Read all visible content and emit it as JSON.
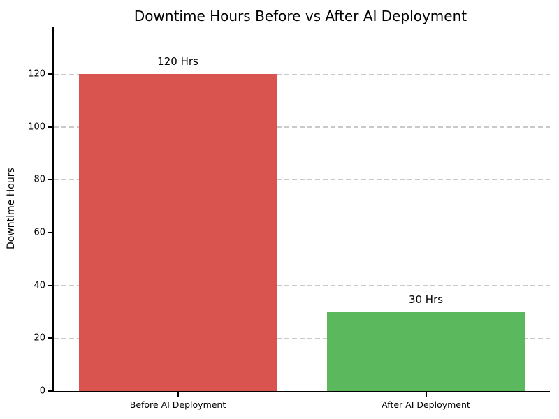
{
  "chart_data": {
    "type": "bar",
    "title": "Downtime Hours Before vs After AI Deployment",
    "xlabel": "",
    "ylabel": "Downtime Hours",
    "categories": [
      "Before AI Deployment",
      "After AI Deployment"
    ],
    "values": [
      120,
      30
    ],
    "bar_labels": [
      "120 Hrs",
      "30 Hrs"
    ],
    "bar_colors": [
      "#d9534f",
      "#5cb85c"
    ],
    "yticks": [
      0,
      20,
      40,
      60,
      80,
      100,
      120
    ],
    "ylim": [
      0,
      138
    ],
    "grid": "horizontal-dashed",
    "grid_color": "#c9c9c9",
    "legend": "none",
    "background_color": "#ffffff",
    "spine_color": "#000000"
  }
}
